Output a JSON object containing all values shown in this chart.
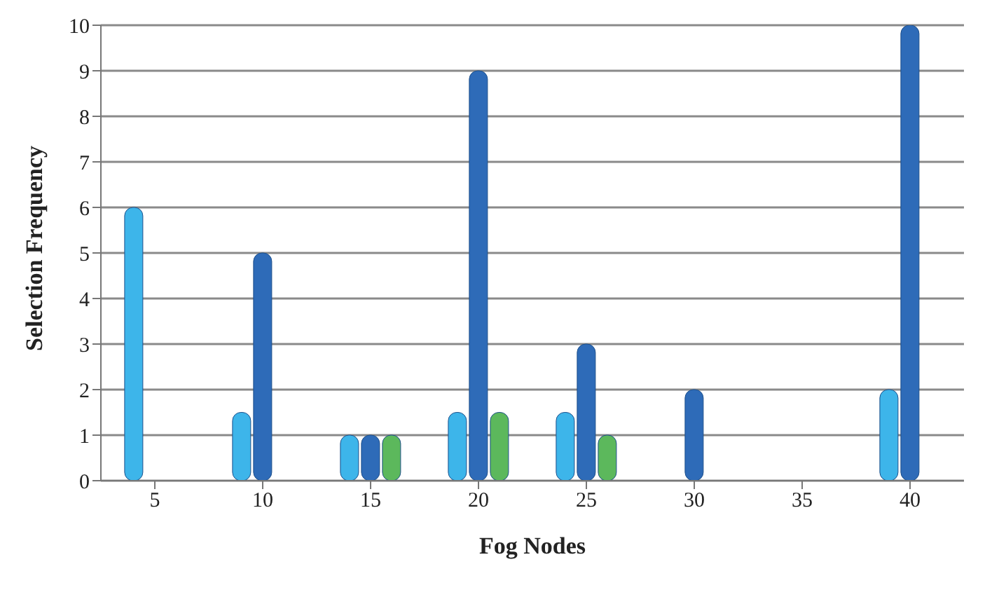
{
  "chart_data": {
    "type": "bar",
    "xlabel": "Fog Nodes",
    "ylabel": "Selection Frequency",
    "categories": [
      "5",
      "10",
      "15",
      "20",
      "25",
      "30",
      "35",
      "40"
    ],
    "series": [
      {
        "color": "#3db5ea",
        "values": [
          6,
          1.5,
          1,
          1.5,
          1.5,
          null,
          null,
          2
        ]
      },
      {
        "color": "#2e6bb8",
        "values": [
          null,
          5,
          1,
          9,
          3,
          2,
          null,
          10
        ]
      },
      {
        "color": "#5cb85c",
        "values": [
          null,
          null,
          1,
          1.5,
          1,
          null,
          null,
          null
        ]
      }
    ],
    "ylim": [
      0,
      10
    ],
    "yticks": [
      0,
      1,
      2,
      3,
      4,
      5,
      6,
      7,
      8,
      9,
      10
    ],
    "grid": "y",
    "legend": false
  }
}
